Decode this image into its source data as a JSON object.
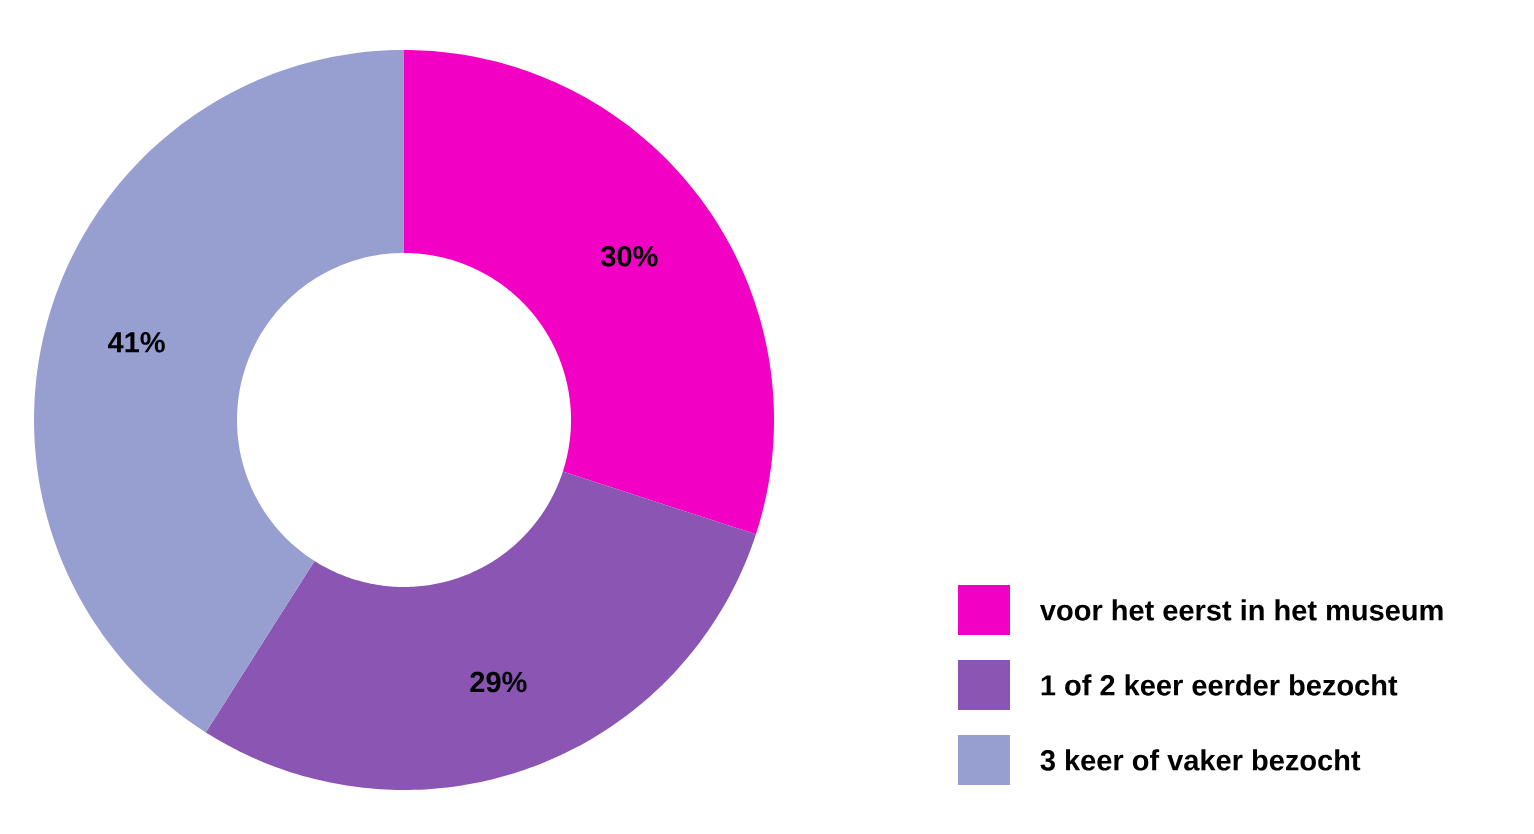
{
  "chart_data": {
    "type": "donut",
    "categories": [
      "voor het eerst in het museum",
      "1 of 2 keer eerder bezocht",
      "3 keer of vaker bezocht"
    ],
    "values": [
      30,
      29,
      41
    ],
    "value_labels": [
      "30%",
      "29%",
      "41%"
    ],
    "colors": [
      "#f200c4",
      "#8b55b3",
      "#979fd0"
    ],
    "legend": "bottom right"
  }
}
